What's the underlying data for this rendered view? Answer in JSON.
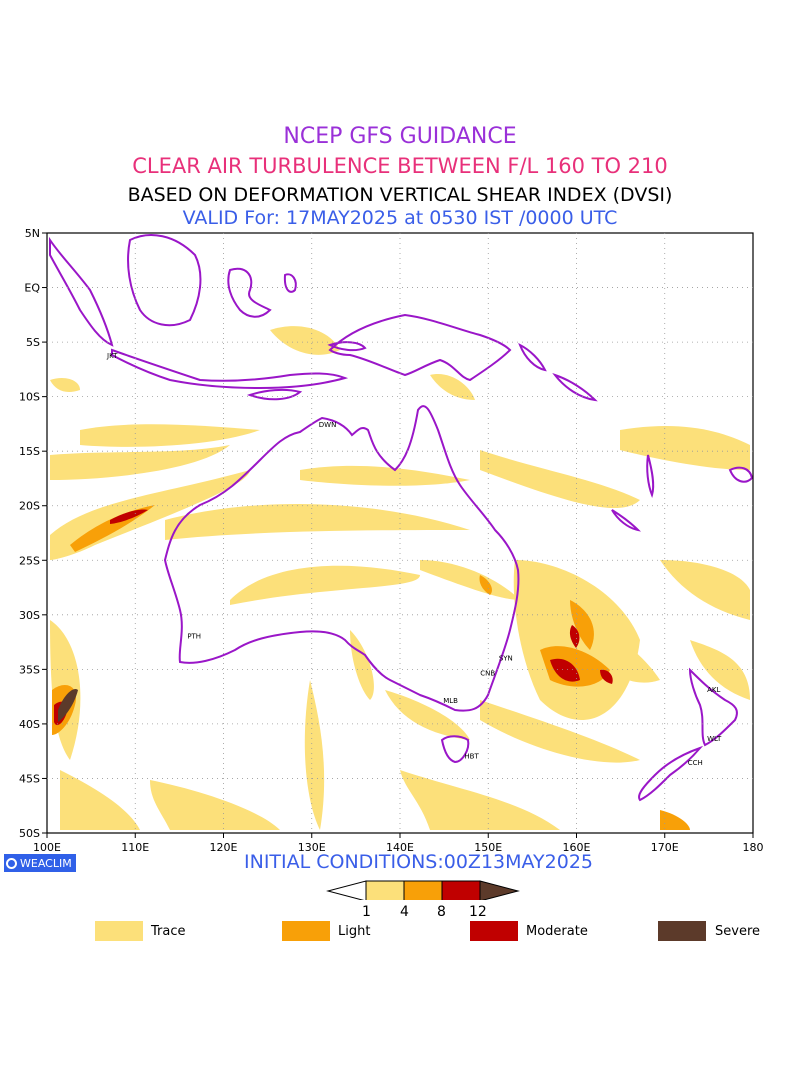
{
  "header": {
    "line1": "NCEP GFS GUIDANCE",
    "line2": "CLEAR AIR TURBULENCE BETWEEN F/L 160 TO 210",
    "line3": "BASED ON DEFORMATION VERTICAL SHEAR INDEX (DVSI)",
    "line4": "VALID For: 17MAY2025 at 0530 IST /0000 UTC"
  },
  "colors": {
    "line1": "#9a30d8",
    "line2": "#e8307a",
    "line3": "#000000",
    "line4": "#3a5ee8",
    "coast": "#9a16c8",
    "trace": "#fce07a",
    "light": "#f8a008",
    "moderate": "#c00000",
    "severe": "#5c3a2a",
    "brand_bg": "#3060e8"
  },
  "map": {
    "lon_min": 100,
    "lon_max": 180,
    "lat_min": -50,
    "lat_max": 5,
    "x_ticks": [
      "100E",
      "110E",
      "120E",
      "130E",
      "140E",
      "150E",
      "160E",
      "170E",
      "180"
    ],
    "y_ticks": [
      "5N",
      "EQ",
      "5S",
      "10S",
      "15S",
      "20S",
      "25S",
      "30S",
      "35S",
      "40S",
      "45S",
      "50S"
    ],
    "cities": [
      {
        "code": "JKT",
        "lon": 106.8,
        "lat": -6.2
      },
      {
        "code": "DWN",
        "lon": 130.8,
        "lat": -12.5
      },
      {
        "code": "PTH",
        "lon": 115.9,
        "lat": -31.9
      },
      {
        "code": "SYN",
        "lon": 151.2,
        "lat": -33.9
      },
      {
        "code": "CNB",
        "lon": 149.1,
        "lat": -35.3
      },
      {
        "code": "MLB",
        "lon": 144.9,
        "lat": -37.8
      },
      {
        "code": "HBT",
        "lon": 147.3,
        "lat": -42.9
      },
      {
        "code": "AKL",
        "lon": 174.8,
        "lat": -36.8
      },
      {
        "code": "WLT",
        "lon": 174.8,
        "lat": -41.3
      },
      {
        "code": "CCH",
        "lon": 172.6,
        "lat": -43.5
      }
    ]
  },
  "footer": {
    "initial": "INITIAL CONDITIONS:00Z13MAY2025",
    "brand": "WEACLIM"
  },
  "colorbar": {
    "labels": [
      "1",
      "4",
      "8",
      "12"
    ]
  },
  "legend": [
    {
      "label": "Trace",
      "color": "#fce07a"
    },
    {
      "label": "Light",
      "color": "#f8a008"
    },
    {
      "label": "Moderate",
      "color": "#c00000"
    },
    {
      "label": "Severe",
      "color": "#5c3a2a"
    }
  ]
}
